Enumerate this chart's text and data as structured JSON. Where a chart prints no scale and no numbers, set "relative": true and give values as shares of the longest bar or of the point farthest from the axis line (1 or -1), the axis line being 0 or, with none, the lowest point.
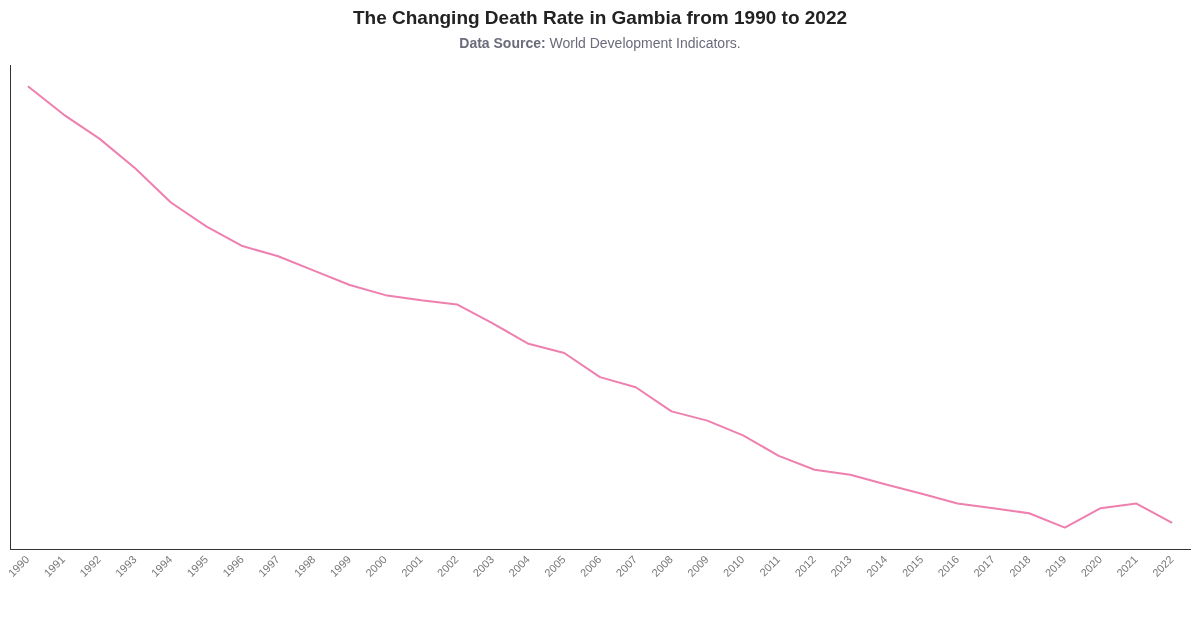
{
  "chart_data": {
    "type": "line",
    "title": "The Changing Death Rate in Gambia from 1990 to 2022",
    "subtitle": "Data Source: World Development Indicators.",
    "categories": [
      "1990",
      "1991",
      "1992",
      "1993",
      "1994",
      "1995",
      "1996",
      "1997",
      "1998",
      "1999",
      "2000",
      "2001",
      "2002",
      "2003",
      "2004",
      "2005",
      "2006",
      "2007",
      "2008",
      "2009",
      "2010",
      "2011",
      "2012",
      "2013",
      "2014",
      "2015",
      "2016",
      "2017",
      "2018",
      "2019",
      "2020",
      "2021",
      "2022"
    ],
    "values": [
      1,
      0.939,
      0.887,
      0.823,
      0.749,
      0.697,
      0.655,
      0.633,
      0.602,
      0.571,
      0.549,
      0.538,
      0.529,
      0.488,
      0.444,
      0.424,
      0.372,
      0.35,
      0.298,
      0.278,
      0.246,
      0.202,
      0.172,
      0.161,
      0.14,
      0.12,
      0.099,
      0.089,
      0.078,
      0.047,
      0.089,
      0.099,
      0.057
    ],
    "color": "#ee7fae",
    "relative": true,
    "marker": "none"
  }
}
